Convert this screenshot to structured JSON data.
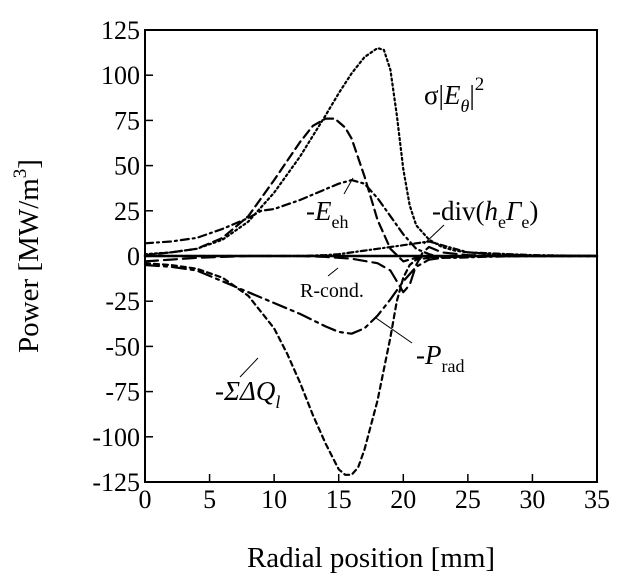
{
  "chart_data": {
    "type": "line",
    "xlabel": "Radial position [mm]",
    "ylabel": "Power [MW/m",
    "ylabel_sup": "3",
    "ylabel_close": "]",
    "xlim": [
      0,
      35
    ],
    "ylim": [
      -125,
      125
    ],
    "x_ticks": [
      0,
      5,
      10,
      15,
      20,
      25,
      30,
      35
    ],
    "x_tick_labels": [
      "0",
      "5",
      "10",
      "15",
      "20",
      "25",
      "30",
      "35"
    ],
    "y_ticks": [
      125,
      100,
      75,
      50,
      25,
      0,
      -25,
      -50,
      -75,
      -100,
      -125
    ],
    "y_tick_labels": [
      "125",
      "100",
      "75",
      "50",
      "25",
      "0",
      "-25",
      "-50",
      "-75",
      "-100",
      "-125"
    ],
    "grid": false,
    "legend": "none",
    "series": [
      {
        "style": "dotted",
        "x": [
          0,
          2,
          4,
          6,
          8,
          10,
          12,
          14,
          15,
          16,
          17,
          18,
          18.5,
          19,
          19.5,
          20,
          20.5,
          21,
          22,
          23,
          24,
          25,
          26,
          28,
          30,
          35
        ],
        "y": [
          1,
          2,
          4,
          9,
          19,
          35,
          55,
          78,
          90,
          101,
          110,
          115,
          114,
          103,
          78,
          48,
          28,
          17,
          9,
          5,
          3,
          2,
          1.5,
          0.8,
          0.3,
          0
        ]
      },
      {
        "style": "dashed",
        "x": [
          0,
          2,
          4,
          6,
          8,
          10,
          12,
          13,
          14,
          14.7,
          15.5,
          16,
          17,
          18,
          19,
          20,
          20.5,
          21,
          22,
          24,
          26,
          30,
          35
        ],
        "y": [
          0.5,
          2,
          4,
          10,
          22,
          42,
          63,
          72,
          76,
          76,
          71,
          65,
          44,
          20,
          4,
          -3,
          -2,
          -1,
          -0.5,
          -0.2,
          0,
          0,
          0
        ]
      },
      {
        "style": "dash-dot",
        "x": [
          0,
          2,
          4,
          6,
          8,
          9,
          10,
          12,
          14,
          15,
          16,
          17,
          18,
          19,
          20,
          21,
          22,
          23,
          24,
          26,
          28,
          30,
          35
        ],
        "y": [
          7,
          8,
          10,
          15,
          21,
          25,
          26,
          31,
          37,
          40,
          42,
          40,
          32,
          22,
          12,
          4,
          1,
          -1,
          -1,
          -0.5,
          -0.2,
          0,
          0
        ]
      },
      {
        "style": "long-dash-dot",
        "x": [
          0,
          2,
          4,
          6,
          8,
          10,
          12,
          14,
          15,
          16,
          17,
          18,
          19,
          20,
          21,
          22,
          23,
          24,
          26,
          28,
          30,
          35
        ],
        "y": [
          -5,
          -6,
          -8,
          -14,
          -20,
          -26,
          -32,
          -39,
          -42,
          -43,
          -40,
          -33,
          -24,
          -14,
          -6,
          -2,
          -1,
          -0.5,
          -0.2,
          0,
          0,
          0
        ]
      },
      {
        "style": "short-dash",
        "x": [
          0,
          2,
          4,
          6,
          8,
          10,
          11,
          12,
          13,
          14,
          15,
          15.5,
          16,
          16.5,
          17,
          18,
          19,
          19.5,
          20,
          20.5,
          21,
          22,
          23,
          24,
          26,
          30,
          35
        ],
        "y": [
          -4,
          -5,
          -7,
          -12,
          -22,
          -40,
          -54,
          -70,
          -88,
          -104,
          -118,
          -121,
          -121,
          -117,
          -107,
          -80,
          -45,
          -25,
          -12,
          -5,
          -2,
          -1,
          -0.5,
          -0.2,
          0,
          0,
          0
        ]
      },
      {
        "style": "long-dash",
        "x": [
          0,
          2,
          4,
          6,
          8,
          10,
          12,
          14,
          16,
          18,
          19,
          19.5,
          20,
          20.5,
          21,
          21.5,
          22,
          23,
          25,
          30,
          35
        ],
        "y": [
          -3,
          -2,
          -1,
          -0.5,
          0,
          0,
          0,
          -0.5,
          -1.5,
          -4,
          -8,
          -14,
          -20,
          -16,
          -5,
          2,
          5,
          2,
          0.5,
          0,
          0
        ]
      },
      {
        "style": "dash-dot-thin",
        "x": [
          0,
          5,
          10,
          12,
          14,
          15,
          16,
          17,
          18,
          19,
          20,
          21,
          22,
          23,
          25,
          30,
          35
        ],
        "y": [
          0,
          0,
          0,
          0,
          0.5,
          1,
          2,
          3,
          4,
          5,
          6,
          7,
          8,
          6,
          2,
          0.5,
          0
        ]
      },
      {
        "style": "solid",
        "x": [
          0,
          35
        ],
        "y": [
          0,
          0
        ]
      }
    ],
    "annotations": {
      "sigma_main": "σ|",
      "sigma_E": "E",
      "sigma_theta": "θ",
      "sigma_close": "|",
      "sigma_pow": "2",
      "eeh_minus": "-",
      "eeh_E": "E",
      "eeh_sub": "eh",
      "div_pre": "-div(",
      "div_h": "h",
      "div_hsub": "e",
      "div_gamma": "Γ",
      "div_gsub": "e",
      "div_close": ")",
      "rcond": "R-cond.",
      "prad_minus": "-",
      "prad_P": "P",
      "prad_sub": "rad",
      "q_minus": "-",
      "q_main": "ΣΔQ",
      "q_sub": "l"
    }
  }
}
